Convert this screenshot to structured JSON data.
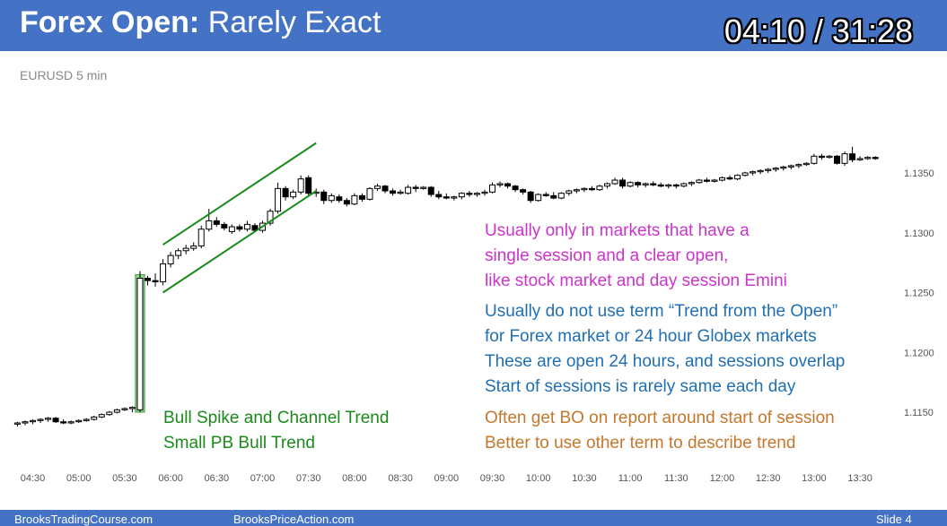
{
  "header": {
    "title_bold": "Forex Open:",
    "title_rest": " Rarely Exact",
    "timer": "04:10 / 31:28"
  },
  "chart_label": "EURUSD 5 min",
  "notes": {
    "pink": [
      "Usually only in markets that have a",
      "single session and a clear open,",
      "like stock market and day session Emini"
    ],
    "blue": [
      "Usually do not use term “Trend from the Open”",
      "for Forex market or 24 hour Globex markets",
      "These are open 24 hours, and sessions overlap",
      "Start of sessions is rarely same each day"
    ],
    "orange": [
      "Often get BO on report around start of session",
      "Better to use other term to describe trend"
    ],
    "green": [
      "Bull Spike and Channel Trend",
      "Small PB Bull Trend"
    ]
  },
  "footer": {
    "left": "BrooksTradingCourse.com",
    "center": "BrooksPriceAction.com",
    "right": "Slide  4"
  },
  "colors": {
    "header_bg": "#4472c4",
    "channel_lines": "#1a8a1a",
    "spike_highlight": "#7ccf7c"
  },
  "chart_data": {
    "type": "candlestick",
    "x_ticks": [
      "04:30",
      "05:00",
      "05:30",
      "06:00",
      "06:30",
      "07:00",
      "07:30",
      "08:00",
      "08:30",
      "09:00",
      "09:30",
      "10:00",
      "10:30",
      "11:00",
      "11:30",
      "12:00",
      "12:30",
      "13:00",
      "13:30"
    ],
    "y_ticks": [
      "1.1350",
      "1.1300",
      "1.1250",
      "1.1200",
      "1.1150"
    ],
    "ylim": [
      1.1127,
      1.1377
    ],
    "bars": [
      [
        "04:20",
        1.114,
        1.1142,
        1.1138,
        1.1141
      ],
      [
        "04:25",
        1.1141,
        1.1143,
        1.1139,
        1.1142
      ],
      [
        "04:30",
        1.1142,
        1.1144,
        1.114,
        1.1143
      ],
      [
        "04:35",
        1.1143,
        1.1145,
        1.1141,
        1.1144
      ],
      [
        "04:40",
        1.1144,
        1.1146,
        1.1142,
        1.1145
      ],
      [
        "04:45",
        1.1145,
        1.1146,
        1.1141,
        1.1142
      ],
      [
        "04:50",
        1.1142,
        1.1144,
        1.114,
        1.1141
      ],
      [
        "04:55",
        1.1141,
        1.1143,
        1.114,
        1.1142
      ],
      [
        "05:00",
        1.1142,
        1.1144,
        1.1141,
        1.1143
      ],
      [
        "05:05",
        1.1143,
        1.1145,
        1.1142,
        1.1144
      ],
      [
        "05:10",
        1.1144,
        1.1147,
        1.1143,
        1.1146
      ],
      [
        "05:15",
        1.1146,
        1.1149,
        1.1145,
        1.1148
      ],
      [
        "05:20",
        1.1148,
        1.1151,
        1.1147,
        1.115
      ],
      [
        "05:25",
        1.115,
        1.1153,
        1.1149,
        1.1152
      ],
      [
        "05:30",
        1.1152,
        1.1154,
        1.1151,
        1.1153
      ],
      [
        "05:35",
        1.1153,
        1.1155,
        1.115,
        1.1154
      ],
      [
        "05:40",
        1.1152,
        1.1268,
        1.115,
        1.1262
      ],
      [
        "05:45",
        1.1262,
        1.1264,
        1.1256,
        1.126
      ],
      [
        "05:50",
        1.126,
        1.1266,
        1.1255,
        1.1259
      ],
      [
        "05:55",
        1.1259,
        1.1278,
        1.1256,
        1.1274
      ],
      [
        "06:00",
        1.1274,
        1.1284,
        1.1271,
        1.1281
      ],
      [
        "06:05",
        1.1281,
        1.1287,
        1.1278,
        1.1285
      ],
      [
        "06:10",
        1.1285,
        1.129,
        1.1282,
        1.1287
      ],
      [
        "06:15",
        1.1287,
        1.1292,
        1.1285,
        1.1289
      ],
      [
        "06:20",
        1.1289,
        1.1306,
        1.1287,
        1.1303
      ],
      [
        "06:25",
        1.1303,
        1.132,
        1.1301,
        1.131
      ],
      [
        "06:30",
        1.131,
        1.1313,
        1.1305,
        1.1307
      ],
      [
        "06:35",
        1.1307,
        1.1309,
        1.1302,
        1.1304
      ],
      [
        "06:40",
        1.1301,
        1.1307,
        1.1299,
        1.1305
      ],
      [
        "06:45",
        1.1305,
        1.1307,
        1.1301,
        1.1303
      ],
      [
        "06:50",
        1.1303,
        1.131,
        1.1301,
        1.1307
      ],
      [
        "06:55",
        1.1306,
        1.1308,
        1.1301,
        1.1302
      ],
      [
        "07:00",
        1.1302,
        1.131,
        1.13,
        1.1308
      ],
      [
        "07:05",
        1.1308,
        1.132,
        1.1306,
        1.1318
      ],
      [
        "07:10",
        1.1318,
        1.1342,
        1.1316,
        1.1337
      ],
      [
        "07:15",
        1.1337,
        1.1339,
        1.1327,
        1.133
      ],
      [
        "07:20",
        1.133,
        1.1336,
        1.1328,
        1.1334
      ],
      [
        "07:25",
        1.1334,
        1.1348,
        1.1332,
        1.1345
      ],
      [
        "07:30",
        1.1346,
        1.1348,
        1.133,
        1.1333
      ],
      [
        "07:35",
        1.1333,
        1.1337,
        1.133,
        1.1334
      ],
      [
        "07:40",
        1.1334,
        1.1336,
        1.1324,
        1.1327
      ],
      [
        "07:45",
        1.1327,
        1.1333,
        1.1325,
        1.1331
      ],
      [
        "07:50",
        1.133,
        1.1332,
        1.1325,
        1.1327
      ],
      [
        "07:55",
        1.1327,
        1.1329,
        1.1322,
        1.1324
      ],
      [
        "08:00",
        1.1324,
        1.1333,
        1.1323,
        1.1331
      ],
      [
        "08:05",
        1.1331,
        1.1333,
        1.1326,
        1.1328
      ],
      [
        "08:10",
        1.1328,
        1.1338,
        1.1327,
        1.1337
      ],
      [
        "08:15",
        1.1337,
        1.1341,
        1.1335,
        1.1339
      ],
      [
        "08:20",
        1.1339,
        1.134,
        1.1333,
        1.1335
      ],
      [
        "08:25",
        1.1335,
        1.1337,
        1.1331,
        1.1333
      ],
      [
        "08:30",
        1.1333,
        1.1336,
        1.1332,
        1.1334
      ],
      [
        "08:35",
        1.1333,
        1.134,
        1.1332,
        1.1338
      ],
      [
        "08:40",
        1.1338,
        1.134,
        1.1334,
        1.1337
      ],
      [
        "08:45",
        1.1337,
        1.1339,
        1.1336,
        1.1338
      ],
      [
        "08:50",
        1.1338,
        1.1339,
        1.133,
        1.1332
      ],
      [
        "08:55",
        1.1332,
        1.1335,
        1.1328,
        1.133
      ],
      [
        "09:00",
        1.133,
        1.1333,
        1.1328,
        1.1329
      ],
      [
        "09:05",
        1.1329,
        1.1331,
        1.1327,
        1.133
      ],
      [
        "09:10",
        1.133,
        1.1334,
        1.1328,
        1.1333
      ],
      [
        "09:15",
        1.1333,
        1.1335,
        1.133,
        1.1332
      ],
      [
        "09:20",
        1.1332,
        1.1334,
        1.133,
        1.1333
      ],
      [
        "09:25",
        1.1333,
        1.1336,
        1.1331,
        1.1334
      ],
      [
        "09:30",
        1.1334,
        1.1342,
        1.1333,
        1.134
      ],
      [
        "09:35",
        1.134,
        1.1343,
        1.1338,
        1.1341
      ],
      [
        "09:40",
        1.1341,
        1.1342,
        1.1337,
        1.1339
      ],
      [
        "09:45",
        1.1339,
        1.134,
        1.1334,
        1.1336
      ],
      [
        "09:50",
        1.1336,
        1.1337,
        1.1332,
        1.1334
      ],
      [
        "09:55",
        1.1334,
        1.1335,
        1.1325,
        1.1327
      ],
      [
        "10:00",
        1.1327,
        1.1333,
        1.1326,
        1.1332
      ],
      [
        "10:05",
        1.1332,
        1.1334,
        1.133,
        1.1331
      ],
      [
        "10:10",
        1.1331,
        1.1334,
        1.1328,
        1.1329
      ],
      [
        "10:15",
        1.1329,
        1.1334,
        1.1328,
        1.1333
      ],
      [
        "10:20",
        1.1333,
        1.1336,
        1.1331,
        1.1335
      ],
      [
        "10:25",
        1.1335,
        1.1337,
        1.1333,
        1.1336
      ],
      [
        "10:30",
        1.1336,
        1.1338,
        1.1334,
        1.1337
      ],
      [
        "10:35",
        1.1337,
        1.1339,
        1.1335,
        1.1336
      ],
      [
        "10:40",
        1.1336,
        1.134,
        1.1335,
        1.1339
      ],
      [
        "10:45",
        1.1339,
        1.1342,
        1.1337,
        1.1341
      ],
      [
        "10:50",
        1.1341,
        1.1346,
        1.134,
        1.1344
      ],
      [
        "10:55",
        1.1344,
        1.1346,
        1.1337,
        1.1339
      ],
      [
        "11:00",
        1.1339,
        1.1343,
        1.1338,
        1.1342
      ],
      [
        "11:05",
        1.1342,
        1.1343,
        1.1338,
        1.134
      ],
      [
        "11:10",
        1.134,
        1.1342,
        1.1338,
        1.1341
      ],
      [
        "11:15",
        1.1341,
        1.1343,
        1.1339,
        1.134
      ],
      [
        "11:20",
        1.134,
        1.1342,
        1.1338,
        1.1339
      ],
      [
        "11:25",
        1.1339,
        1.1341,
        1.1337,
        1.134
      ],
      [
        "11:30",
        1.134,
        1.1341,
        1.1337,
        1.1339
      ],
      [
        "11:35",
        1.1339,
        1.1342,
        1.1338,
        1.1341
      ],
      [
        "11:40",
        1.1341,
        1.1343,
        1.1339,
        1.1342
      ],
      [
        "11:45",
        1.1342,
        1.1345,
        1.1341,
        1.1344
      ],
      [
        "11:50",
        1.1344,
        1.1346,
        1.1342,
        1.1343
      ],
      [
        "11:55",
        1.1343,
        1.1345,
        1.1342,
        1.1344
      ],
      [
        "12:00",
        1.1344,
        1.1347,
        1.1343,
        1.1346
      ],
      [
        "12:05",
        1.1346,
        1.1348,
        1.1344,
        1.1345
      ],
      [
        "12:10",
        1.1345,
        1.1349,
        1.1344,
        1.1348
      ],
      [
        "12:15",
        1.1348,
        1.1351,
        1.1347,
        1.135
      ],
      [
        "12:20",
        1.135,
        1.1352,
        1.1348,
        1.1351
      ],
      [
        "12:25",
        1.1351,
        1.1353,
        1.1349,
        1.1352
      ],
      [
        "12:30",
        1.1352,
        1.1354,
        1.135,
        1.1353
      ],
      [
        "12:35",
        1.1353,
        1.1355,
        1.1351,
        1.1354
      ],
      [
        "12:40",
        1.1354,
        1.1356,
        1.1352,
        1.1355
      ],
      [
        "12:45",
        1.1355,
        1.1357,
        1.1353,
        1.1356
      ],
      [
        "12:50",
        1.1356,
        1.1358,
        1.1354,
        1.1357
      ],
      [
        "12:55",
        1.1357,
        1.1359,
        1.1356,
        1.1358
      ],
      [
        "13:00",
        1.1358,
        1.1366,
        1.1357,
        1.1364
      ],
      [
        "13:05",
        1.1364,
        1.1366,
        1.1361,
        1.1363
      ],
      [
        "13:10",
        1.1363,
        1.1365,
        1.1362,
        1.1364
      ],
      [
        "13:15",
        1.1364,
        1.1365,
        1.1357,
        1.1358
      ],
      [
        "13:20",
        1.1358,
        1.1368,
        1.1356,
        1.1366
      ],
      [
        "13:25",
        1.1366,
        1.1372,
        1.1359,
        1.1361
      ],
      [
        "13:30",
        1.1361,
        1.1364,
        1.136,
        1.1362
      ],
      [
        "13:35",
        1.1362,
        1.1364,
        1.1361,
        1.1363
      ],
      [
        "13:40",
        1.1363,
        1.1364,
        1.1361,
        1.1362
      ]
    ],
    "channel_lines": [
      {
        "from": [
          "05:55",
          1.129
        ],
        "to": [
          "07:35",
          1.1375
        ]
      },
      {
        "from": [
          "05:55",
          1.125
        ],
        "to": [
          "07:35",
          1.1335
        ]
      }
    ],
    "highlight": {
      "from": [
        "05:37",
        1.115
      ],
      "to": [
        "05:43",
        1.1265
      ]
    }
  }
}
